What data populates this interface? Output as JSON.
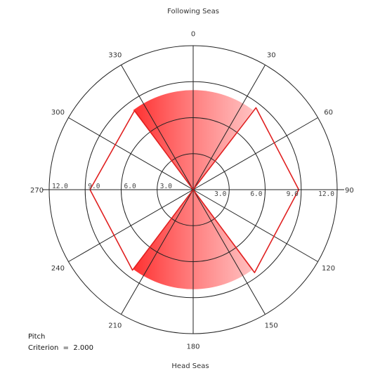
{
  "chart_data": {
    "type": "polar",
    "top_label": "Following Seas",
    "bottom_label": "Head Seas",
    "angle_ticks": [
      "0",
      "30",
      "60",
      "90",
      "120",
      "150",
      "180",
      "210",
      "240",
      "270",
      "300",
      "330"
    ],
    "radial_ticks": [
      "3.0",
      "6.0",
      "9.0",
      "12.0"
    ],
    "radial_tick_values": [
      3,
      6,
      9,
      12
    ],
    "r_max": 12,
    "criterion": {
      "label_line1": "Pitch",
      "label_line2": "Criterion  =  2.000"
    },
    "fill_color": "#ff3a3a",
    "outline_color": "#e02020",
    "regions": [
      {
        "name": "following",
        "angles": [
          -37,
          37
        ],
        "r": 8.3
      },
      {
        "name": "head",
        "angles": [
          143,
          217
        ],
        "r": 8.3
      }
    ],
    "outline": [
      {
        "angle": -36.6,
        "r": 8.2
      },
      {
        "angle": -36.6,
        "r": 0
      },
      {
        "angle": 36.6,
        "r": 0
      },
      {
        "angle": 37.5,
        "r": 8.6
      },
      {
        "angle": 90,
        "r": 8.8
      },
      {
        "angle": 143.5,
        "r": 8.6
      },
      {
        "angle": 143.5,
        "r": 0
      },
      {
        "angle": 217,
        "r": 0
      },
      {
        "angle": 217,
        "r": 8.4
      },
      {
        "angle": 270,
        "r": 8.6
      },
      {
        "angle": 323.4,
        "r": 8.2
      }
    ]
  }
}
